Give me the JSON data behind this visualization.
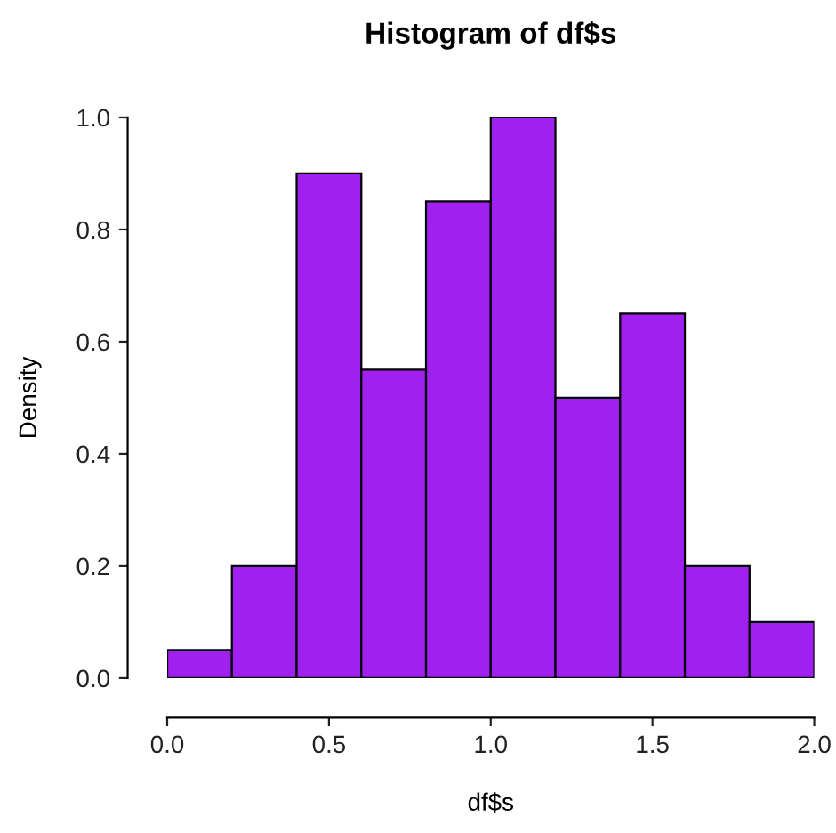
{
  "chart_data": {
    "type": "histogram",
    "title": "Histogram of df$s",
    "xlabel": "df$s",
    "ylabel": "Density",
    "bins": [
      0,
      0.2,
      0.4,
      0.6,
      0.8,
      1.0,
      1.2,
      1.4,
      1.6,
      1.8,
      2.0
    ],
    "values": [
      0.05,
      0.2,
      0.9,
      0.55,
      0.85,
      1.0,
      0.5,
      0.65,
      0.2,
      0.1
    ],
    "color": "#a020f0",
    "xlim": [
      0,
      2
    ],
    "ylim": [
      0,
      1
    ],
    "xticks": [
      {
        "value": 0,
        "label": "0.0"
      },
      {
        "value": 0.5,
        "label": "0.5"
      },
      {
        "value": 1,
        "label": "1.0"
      },
      {
        "value": 1.5,
        "label": "1.5"
      },
      {
        "value": 2,
        "label": "2.0"
      }
    ],
    "yticks": [
      {
        "value": 0,
        "label": "0.0"
      },
      {
        "value": 0.2,
        "label": "0.2"
      },
      {
        "value": 0.4,
        "label": "0.4"
      },
      {
        "value": 0.6,
        "label": "0.6"
      },
      {
        "value": 0.8,
        "label": "0.8"
      },
      {
        "value": 1,
        "label": "1.0"
      }
    ],
    "grid": false
  }
}
